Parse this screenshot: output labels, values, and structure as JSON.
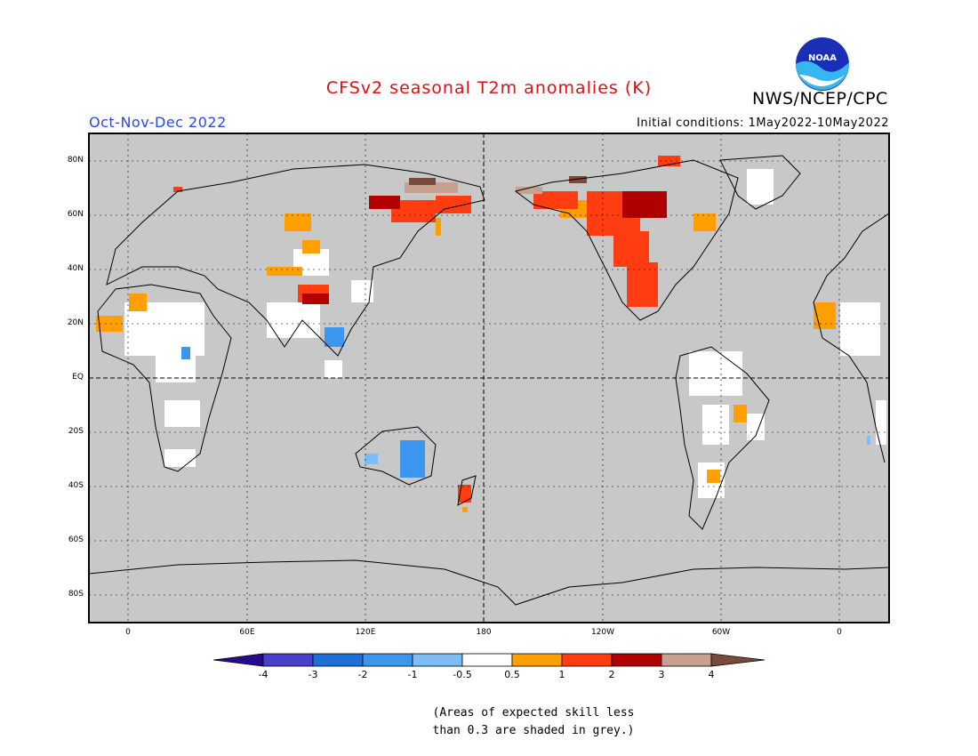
{
  "header": {
    "title": "CFSv2 seasonal T2m anomalies (K)",
    "organization": "NWS/NCEP/CPC",
    "season": "Oct-Nov-Dec 2022",
    "initial_conditions": "Initial conditions: 1May2022-10May2022",
    "logo_text": "NOAA"
  },
  "map": {
    "lat_labels": [
      "80N",
      "60N",
      "40N",
      "20N",
      "EQ",
      "20S",
      "40S",
      "60S",
      "80S"
    ],
    "lon_labels": [
      "0",
      "60E",
      "120E",
      "180",
      "120W",
      "60W",
      "0"
    ],
    "skill_mask_color": "#c8c8c8",
    "ocean_color": "#c8c8c8",
    "land_outline_color": "#000000"
  },
  "colorbar": {
    "labels": [
      "-4",
      "-3",
      "-2",
      "-1",
      "-0.5",
      "0.5",
      "1",
      "2",
      "3",
      "4"
    ],
    "colors": [
      "#2a0a8c",
      "#4b3fcc",
      "#1f6fd9",
      "#3c96ee",
      "#7dbcf5",
      "#ffffff",
      "#ffa000",
      "#ff3d10",
      "#b00000",
      "#c8a090",
      "#7a4a3c"
    ]
  },
  "footnote": {
    "line1": "(Areas of expected skill less",
    "line2": "than 0.3 are shaded in grey.)"
  }
}
